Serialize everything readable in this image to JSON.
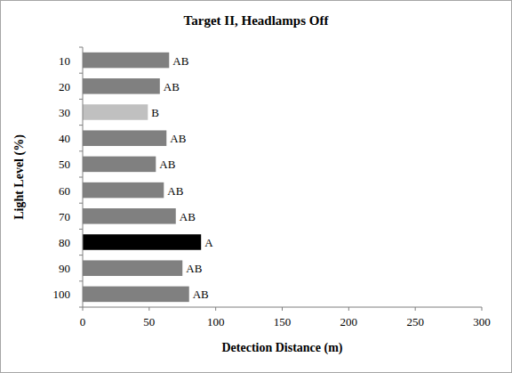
{
  "chart_data": {
    "type": "bar",
    "orientation": "horizontal",
    "title": "Target II, Headlamps Off",
    "x_label": "Detection Distance (m)",
    "y_label": "Light Level (%)",
    "categories": [
      "10",
      "20",
      "30",
      "40",
      "50",
      "60",
      "70",
      "80",
      "90",
      "100"
    ],
    "values": [
      65,
      58,
      49,
      63,
      55,
      61,
      70,
      89,
      75,
      80
    ],
    "colors": [
      "#808080",
      "#808080",
      "#c0c0c0",
      "#808080",
      "#808080",
      "#808080",
      "#808080",
      "#000000",
      "#808080",
      "#808080"
    ],
    "annotations": [
      "AB",
      "AB",
      "B",
      "AB",
      "AB",
      "AB",
      "AB",
      "A",
      "AB",
      "AB"
    ],
    "xlim": [
      0,
      300
    ],
    "xticks": [
      0,
      50,
      100,
      150,
      200,
      250,
      300
    ],
    "grid": false
  }
}
